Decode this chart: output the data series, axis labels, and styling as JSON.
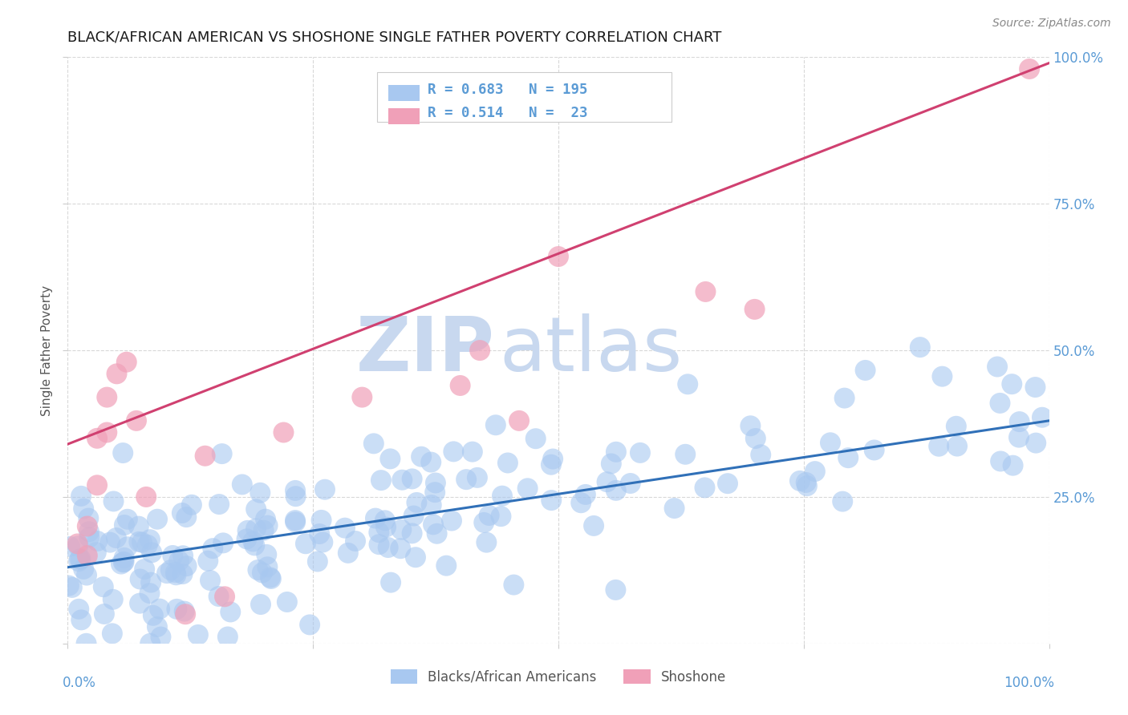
{
  "title": "BLACK/AFRICAN AMERICAN VS SHOSHONE SINGLE FATHER POVERTY CORRELATION CHART",
  "source": "Source: ZipAtlas.com",
  "ylabel": "Single Father Poverty",
  "legend_label1": "Blacks/African Americans",
  "legend_label2": "Shoshone",
  "r1": 0.683,
  "n1": 195,
  "r2": 0.514,
  "n2": 23,
  "color_blue": "#a8c8f0",
  "color_pink": "#f0a0b8",
  "line_blue": "#3070b8",
  "line_pink": "#d04070",
  "watermark_zip": "ZIP",
  "watermark_atlas": "atlas",
  "xlim": [
    0.0,
    1.0
  ],
  "ylim": [
    0.0,
    1.0
  ],
  "blue_intercept": 0.13,
  "blue_slope": 0.25,
  "pink_intercept": 0.34,
  "pink_slope": 0.65,
  "title_fontsize": 13,
  "tick_label_color": "#5b9bd5",
  "watermark_color": "#c8d8ef",
  "legend_text_color": "#5b9bd5",
  "grid_color": "#d8d8d8",
  "ylabel_color": "#555555"
}
